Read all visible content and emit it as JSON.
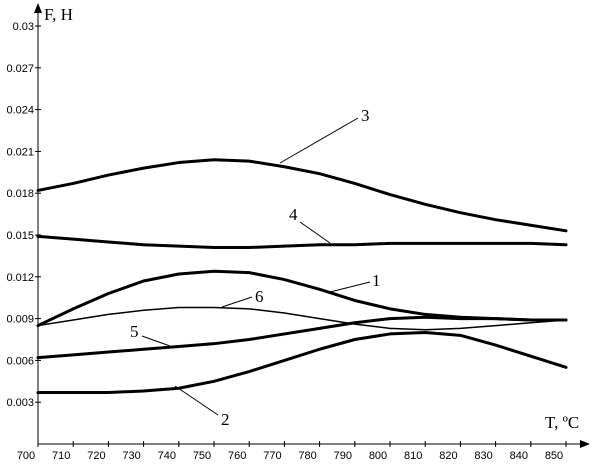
{
  "chart_data": {
    "type": "line",
    "x_label": "T, ºC",
    "y_label": "F, H",
    "x": [
      700,
      710,
      720,
      730,
      740,
      750,
      760,
      770,
      780,
      790,
      800,
      810,
      820,
      830,
      840,
      850
    ],
    "xlim": [
      700,
      850
    ],
    "xticks": [
      700,
      710,
      720,
      730,
      740,
      750,
      760,
      770,
      780,
      790,
      800,
      810,
      820,
      830,
      840,
      850
    ],
    "ylim": [
      0,
      0.03
    ],
    "yticks": [
      0.003,
      0.006,
      0.009,
      0.012,
      0.015,
      0.018,
      0.021,
      0.024,
      0.027,
      0.03
    ],
    "grid": false,
    "series": [
      {
        "name": "1",
        "color": "#000000",
        "line_width": 3,
        "values": [
          0.0085,
          0.0097,
          0.0108,
          0.0117,
          0.0122,
          0.0124,
          0.0123,
          0.0118,
          0.0111,
          0.0103,
          0.0097,
          0.0093,
          0.0091,
          0.009,
          0.0089,
          0.0089
        ]
      },
      {
        "name": "2",
        "color": "#000000",
        "line_width": 3,
        "values": [
          0.0037,
          0.0037,
          0.0037,
          0.0038,
          0.004,
          0.0045,
          0.0052,
          0.006,
          0.0068,
          0.0075,
          0.0079,
          0.008,
          0.0078,
          0.0071,
          0.0063,
          0.0055
        ]
      },
      {
        "name": "3",
        "color": "#000000",
        "line_width": 3,
        "values": [
          0.0182,
          0.0187,
          0.0193,
          0.0198,
          0.0202,
          0.0204,
          0.0203,
          0.0199,
          0.0194,
          0.0187,
          0.0179,
          0.0172,
          0.0166,
          0.0161,
          0.0157,
          0.0153
        ]
      },
      {
        "name": "4",
        "color": "#000000",
        "line_width": 3,
        "values": [
          0.0149,
          0.0147,
          0.0145,
          0.0143,
          0.0142,
          0.0141,
          0.0141,
          0.0142,
          0.0143,
          0.0143,
          0.0144,
          0.0144,
          0.0144,
          0.0144,
          0.0144,
          0.0143
        ]
      },
      {
        "name": "5",
        "color": "#000000",
        "line_width": 3,
        "values": [
          0.0062,
          0.0064,
          0.0066,
          0.0068,
          0.007,
          0.0072,
          0.0075,
          0.0079,
          0.0083,
          0.0087,
          0.009,
          0.0091,
          0.009,
          0.009,
          0.0089,
          0.0089
        ]
      },
      {
        "name": "6",
        "color": "#000000",
        "line_width": 1.5,
        "values": [
          0.0085,
          0.0089,
          0.0093,
          0.0096,
          0.0098,
          0.0098,
          0.0097,
          0.0094,
          0.009,
          0.0086,
          0.0083,
          0.0082,
          0.0083,
          0.0085,
          0.0087,
          0.0089
        ]
      }
    ]
  }
}
